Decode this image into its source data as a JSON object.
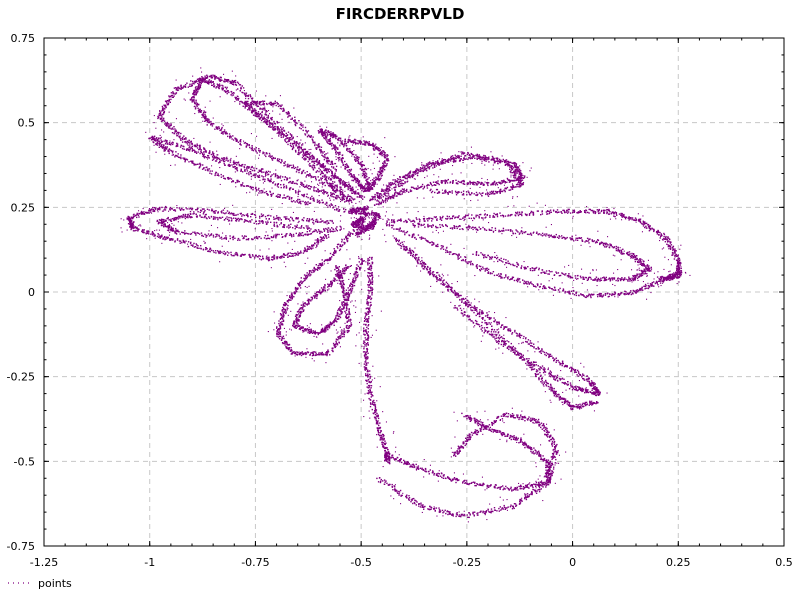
{
  "chart_data": {
    "type": "scatter",
    "title": "FIRCDERRPVLD",
    "xlabel": "",
    "ylabel": "",
    "xlim": [
      -1.25,
      0.5
    ],
    "ylim": [
      -0.75,
      0.75
    ],
    "xticks": [
      -1.25,
      -1,
      -0.75,
      -0.5,
      -0.25,
      0,
      0.25,
      0.5
    ],
    "xtick_labels": [
      "-1.25",
      "-1",
      "-0.75",
      "-0.5",
      "-0.25",
      "0",
      "0.25",
      "0.5"
    ],
    "yticks": [
      -0.75,
      -0.5,
      -0.25,
      0,
      0.25,
      0.5,
      0.75
    ],
    "ytick_labels": [
      "-0.75",
      "-0.5",
      "-0.25",
      "0",
      "0.25",
      "0.5",
      "0.75"
    ],
    "grid": true,
    "legend_position": "bottom-left",
    "series": [
      {
        "name": "points",
        "color": "#800080",
        "marker": "dot",
        "strands": [
          {
            "label": "top-left upper petal",
            "points": [
              [
                -0.5,
                0.28
              ],
              [
                -0.56,
                0.34
              ],
              [
                -0.64,
                0.42
              ],
              [
                -0.74,
                0.52
              ],
              [
                -0.82,
                0.6
              ],
              [
                -0.88,
                0.63
              ],
              [
                -0.9,
                0.57
              ],
              [
                -0.86,
                0.5
              ],
              [
                -0.78,
                0.44
              ],
              [
                -0.68,
                0.38
              ],
              [
                -0.58,
                0.32
              ],
              [
                -0.52,
                0.27
              ]
            ]
          },
          {
            "label": "top-left outer loop",
            "points": [
              [
                -0.52,
                0.3
              ],
              [
                -0.62,
                0.4
              ],
              [
                -0.72,
                0.52
              ],
              [
                -0.8,
                0.62
              ],
              [
                -0.86,
                0.64
              ],
              [
                -0.94,
                0.6
              ],
              [
                -0.98,
                0.52
              ],
              [
                -0.92,
                0.45
              ],
              [
                -0.84,
                0.4
              ],
              [
                -0.74,
                0.36
              ],
              [
                -0.62,
                0.31
              ],
              [
                -0.53,
                0.27
              ]
            ]
          },
          {
            "label": "top-left long arm",
            "points": [
              [
                -0.54,
                0.24
              ],
              [
                -0.66,
                0.3
              ],
              [
                -0.78,
                0.36
              ],
              [
                -0.9,
                0.42
              ],
              [
                -1.0,
                0.46
              ],
              [
                -0.96,
                0.42
              ],
              [
                -0.86,
                0.36
              ],
              [
                -0.74,
                0.3
              ],
              [
                -0.62,
                0.26
              ]
            ]
          },
          {
            "label": "upper-left inner loop",
            "points": [
              [
                -0.55,
                0.3
              ],
              [
                -0.62,
                0.38
              ],
              [
                -0.72,
                0.5
              ],
              [
                -0.78,
                0.56
              ],
              [
                -0.7,
                0.56
              ],
              [
                -0.62,
                0.46
              ],
              [
                -0.56,
                0.36
              ]
            ]
          },
          {
            "label": "top centre loop",
            "points": [
              [
                -0.48,
                0.3
              ],
              [
                -0.5,
                0.38
              ],
              [
                -0.56,
                0.46
              ],
              [
                -0.6,
                0.48
              ],
              [
                -0.56,
                0.42
              ],
              [
                -0.52,
                0.34
              ],
              [
                -0.49,
                0.3
              ],
              [
                -0.46,
                0.34
              ],
              [
                -0.44,
                0.4
              ],
              [
                -0.48,
                0.44
              ],
              [
                -0.54,
                0.45
              ]
            ]
          },
          {
            "label": "upper right arm",
            "points": [
              [
                -0.48,
                0.27
              ],
              [
                -0.42,
                0.33
              ],
              [
                -0.34,
                0.38
              ],
              [
                -0.24,
                0.4
              ],
              [
                -0.14,
                0.38
              ],
              [
                -0.12,
                0.34
              ],
              [
                -0.2,
                0.32
              ],
              [
                -0.3,
                0.33
              ],
              [
                -0.4,
                0.3
              ],
              [
                -0.47,
                0.26
              ]
            ]
          },
          {
            "label": "upper right arm outer",
            "points": [
              [
                -0.46,
                0.28
              ],
              [
                -0.36,
                0.36
              ],
              [
                -0.26,
                0.41
              ],
              [
                -0.16,
                0.39
              ],
              [
                -0.12,
                0.32
              ],
              [
                -0.2,
                0.29
              ],
              [
                -0.34,
                0.3
              ]
            ]
          },
          {
            "label": "right petal upper edge",
            "points": [
              [
                -0.44,
                0.21
              ],
              [
                -0.3,
                0.22
              ],
              [
                -0.16,
                0.23
              ],
              [
                -0.02,
                0.24
              ],
              [
                0.08,
                0.24
              ],
              [
                0.16,
                0.21
              ],
              [
                0.22,
                0.16
              ],
              [
                0.25,
                0.09
              ],
              [
                0.25,
                0.05
              ],
              [
                0.2,
                0.04
              ]
            ]
          },
          {
            "label": "right petal lower edge",
            "points": [
              [
                -0.44,
                0.2
              ],
              [
                -0.32,
                0.14
              ],
              [
                -0.2,
                0.06
              ],
              [
                -0.08,
                0.02
              ],
              [
                0.04,
                -0.01
              ],
              [
                0.14,
                0.0
              ],
              [
                0.22,
                0.04
              ],
              [
                0.25,
                0.06
              ]
            ]
          },
          {
            "label": "right petal inner",
            "points": [
              [
                -0.38,
                0.2
              ],
              [
                -0.22,
                0.19
              ],
              [
                -0.06,
                0.17
              ],
              [
                0.06,
                0.15
              ],
              [
                0.14,
                0.11
              ],
              [
                0.18,
                0.07
              ],
              [
                0.14,
                0.04
              ],
              [
                0.04,
                0.04
              ],
              [
                -0.1,
                0.07
              ],
              [
                -0.24,
                0.12
              ]
            ]
          },
          {
            "label": "left petal upper edge",
            "points": [
              [
                -0.57,
                0.21
              ],
              [
                -0.7,
                0.22
              ],
              [
                -0.84,
                0.24
              ],
              [
                -0.98,
                0.25
              ],
              [
                -1.05,
                0.22
              ],
              [
                -1.04,
                0.19
              ],
              [
                -0.96,
                0.16
              ],
              [
                -0.84,
                0.12
              ],
              [
                -0.72,
                0.1
              ],
              [
                -0.64,
                0.12
              ],
              [
                -0.58,
                0.17
              ]
            ]
          },
          {
            "label": "left petal inner",
            "points": [
              [
                -0.55,
                0.19
              ],
              [
                -0.66,
                0.17
              ],
              [
                -0.8,
                0.16
              ],
              [
                -0.94,
                0.18
              ],
              [
                -0.98,
                0.21
              ],
              [
                -0.9,
                0.23
              ],
              [
                -0.76,
                0.21
              ],
              [
                -0.62,
                0.19
              ]
            ]
          },
          {
            "label": "lower left lobe",
            "points": [
              [
                -0.52,
                0.18
              ],
              [
                -0.58,
                0.1
              ],
              [
                -0.64,
                0.04
              ],
              [
                -0.68,
                -0.04
              ],
              [
                -0.7,
                -0.12
              ],
              [
                -0.66,
                -0.18
              ],
              [
                -0.58,
                -0.18
              ],
              [
                -0.53,
                -0.1
              ],
              [
                -0.54,
                0.0
              ],
              [
                -0.56,
                0.08
              ]
            ]
          },
          {
            "label": "lower left lobe inner",
            "points": [
              [
                -0.5,
                0.1
              ],
              [
                -0.53,
                0.0
              ],
              [
                -0.56,
                -0.08
              ],
              [
                -0.6,
                -0.12
              ],
              [
                -0.66,
                -0.1
              ],
              [
                -0.64,
                -0.04
              ],
              [
                -0.58,
                0.02
              ],
              [
                -0.53,
                0.08
              ]
            ]
          },
          {
            "label": "central descending stem",
            "points": [
              [
                -0.48,
                0.1
              ],
              [
                -0.48,
                0.0
              ],
              [
                -0.49,
                -0.1
              ],
              [
                -0.49,
                -0.2
              ],
              [
                -0.48,
                -0.3
              ],
              [
                -0.46,
                -0.4
              ],
              [
                -0.44,
                -0.47
              ],
              [
                -0.44,
                -0.5
              ]
            ]
          },
          {
            "label": "lower central loop",
            "points": [
              [
                -0.44,
                -0.48
              ],
              [
                -0.36,
                -0.52
              ],
              [
                -0.26,
                -0.56
              ],
              [
                -0.14,
                -0.58
              ],
              [
                -0.06,
                -0.56
              ],
              [
                -0.06,
                -0.5
              ],
              [
                -0.12,
                -0.44
              ],
              [
                -0.2,
                -0.4
              ],
              [
                -0.26,
                -0.36
              ]
            ]
          },
          {
            "label": "lower outer loop",
            "points": [
              [
                -0.46,
                -0.55
              ],
              [
                -0.36,
                -0.63
              ],
              [
                -0.26,
                -0.66
              ],
              [
                -0.14,
                -0.63
              ],
              [
                -0.06,
                -0.56
              ],
              [
                -0.04,
                -0.46
              ],
              [
                -0.08,
                -0.38
              ],
              [
                -0.16,
                -0.36
              ],
              [
                -0.24,
                -0.42
              ],
              [
                -0.28,
                -0.48
              ]
            ]
          },
          {
            "label": "lower right diagonal",
            "points": [
              [
                -0.42,
                0.16
              ],
              [
                -0.34,
                0.06
              ],
              [
                -0.24,
                -0.04
              ],
              [
                -0.14,
                -0.12
              ],
              [
                -0.04,
                -0.2
              ],
              [
                0.04,
                -0.26
              ],
              [
                0.06,
                -0.3
              ],
              [
                0.0,
                -0.28
              ],
              [
                -0.08,
                -0.22
              ],
              [
                -0.18,
                -0.14
              ],
              [
                -0.28,
                -0.04
              ]
            ]
          },
          {
            "label": "lower right diagonal outer",
            "points": [
              [
                -0.4,
                0.14
              ],
              [
                -0.28,
                0.0
              ],
              [
                -0.18,
                -0.12
              ],
              [
                -0.1,
                -0.22
              ],
              [
                -0.04,
                -0.3
              ],
              [
                0.0,
                -0.34
              ],
              [
                0.06,
                -0.32
              ]
            ]
          },
          {
            "label": "central cluster",
            "points": [
              [
                -0.5,
                0.22
              ],
              [
                -0.52,
                0.2
              ],
              [
                -0.48,
                0.19
              ],
              [
                -0.46,
                0.23
              ],
              [
                -0.53,
                0.24
              ],
              [
                -0.49,
                0.25
              ],
              [
                -0.51,
                0.17
              ],
              [
                -0.47,
                0.21
              ]
            ]
          }
        ]
      }
    ]
  }
}
